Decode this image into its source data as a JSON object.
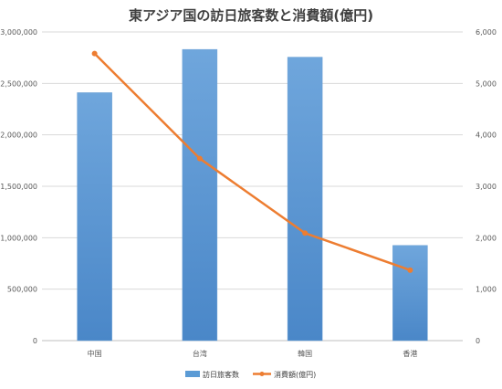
{
  "chart_data": {
    "type": "bar",
    "title": "東アジア国の訪日旅客数と消費額(億円)",
    "categories": [
      "中国",
      "台湾",
      "韓国",
      "香港"
    ],
    "series": [
      {
        "name": "訪日旅客数",
        "type": "bar",
        "axis": "left",
        "color": "#5b9bd5",
        "values": [
          2410000,
          2830000,
          2755000,
          925000
        ]
      },
      {
        "name": "消費額(億円)",
        "type": "line",
        "axis": "right",
        "color": "#ed7d31",
        "values": [
          5580,
          3540,
          2090,
          1370
        ]
      }
    ],
    "y_left": {
      "min": 0,
      "max": 3000000,
      "step": 500000,
      "tick_labels": [
        "0",
        "500,000",
        "1,000,000",
        "1,500,000",
        "2,000,000",
        "2,500,000",
        "3,000,000"
      ]
    },
    "y_right": {
      "min": 0,
      "max": 6000,
      "step": 1000,
      "tick_labels": [
        "0",
        "1,000",
        "2,000",
        "3,000",
        "4,000",
        "5,000",
        "6,000"
      ]
    },
    "grid": true,
    "legend": "bottom"
  }
}
